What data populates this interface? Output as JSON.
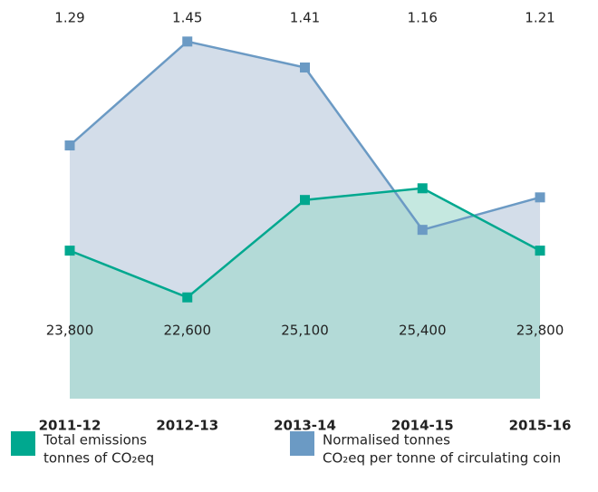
{
  "chart_data": {
    "type": "area",
    "categories": [
      "2011-12",
      "2012-13",
      "2013-14",
      "2014-15",
      "2015-16"
    ],
    "series": [
      {
        "name": "Total emissions",
        "unit": "tonnes of CO₂eq",
        "color": "#00a88f",
        "fill": "#9ed9cc",
        "values": [
          23800,
          22600,
          25100,
          25400,
          23800
        ],
        "value_labels": [
          "23,800",
          "22,600",
          "25,100",
          "25,400",
          "23,800"
        ]
      },
      {
        "name": "Normalised tonnes",
        "unit": "CO₂eq per tonne of circulating coin",
        "color": "#6b9ac4",
        "fill": "#d3dde9",
        "axis": "y2",
        "values": [
          1.29,
          1.45,
          1.41,
          1.16,
          1.21
        ]
      }
    ],
    "ylim": [
      20000,
      30000
    ],
    "y2lim": [
      0.9,
      1.5
    ]
  }
}
